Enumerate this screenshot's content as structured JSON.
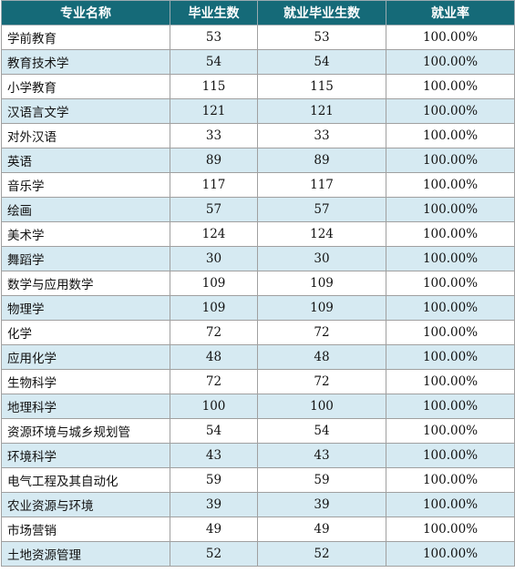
{
  "table": {
    "headers": [
      "专业名称",
      "毕业生数",
      "就业毕业生数",
      "就业率"
    ],
    "rows": [
      [
        "学前教育",
        "53",
        "53",
        "100.00%"
      ],
      [
        "教育技术学",
        "54",
        "54",
        "100.00%"
      ],
      [
        "小学教育",
        "115",
        "115",
        "100.00%"
      ],
      [
        "汉语言文学",
        "121",
        "121",
        "100.00%"
      ],
      [
        "对外汉语",
        "33",
        "33",
        "100.00%"
      ],
      [
        "英语",
        "89",
        "89",
        "100.00%"
      ],
      [
        "音乐学",
        "117",
        "117",
        "100.00%"
      ],
      [
        "绘画",
        "57",
        "57",
        "100.00%"
      ],
      [
        "美术学",
        "124",
        "124",
        "100.00%"
      ],
      [
        "舞蹈学",
        "30",
        "30",
        "100.00%"
      ],
      [
        "数学与应用数学",
        "109",
        "109",
        "100.00%"
      ],
      [
        "物理学",
        "109",
        "109",
        "100.00%"
      ],
      [
        "化学",
        "72",
        "72",
        "100.00%"
      ],
      [
        "应用化学",
        "48",
        "48",
        "100.00%"
      ],
      [
        "生物科学",
        "72",
        "72",
        "100.00%"
      ],
      [
        "地理科学",
        "100",
        "100",
        "100.00%"
      ],
      [
        "资源环境与城乡规划管",
        "54",
        "54",
        "100.00%"
      ],
      [
        "环境科学",
        "43",
        "43",
        "100.00%"
      ],
      [
        "电气工程及其自动化",
        "59",
        "59",
        "100.00%"
      ],
      [
        "农业资源与环境",
        "39",
        "39",
        "100.00%"
      ],
      [
        "市场营销",
        "49",
        "49",
        "100.00%"
      ],
      [
        "土地资源管理",
        "52",
        "52",
        "100.00%"
      ]
    ]
  },
  "colors": {
    "header_bg": "#156a78",
    "stripe_bg": "#d6eaf2"
  }
}
